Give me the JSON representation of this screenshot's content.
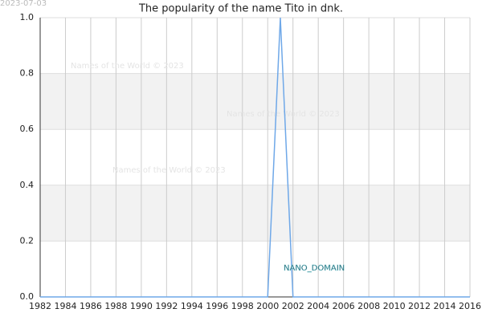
{
  "chart_data": {
    "type": "line",
    "title": "The popularity of the name Tito in dnk.",
    "date_stamp": "2023-07-03",
    "watermarks": [
      "Names of the World © 2023",
      "Names of the World © 2023",
      "Names of the World © 2023"
    ],
    "domain_label": "NANO_DOMAIN",
    "x": [
      1982,
      2000,
      2001,
      2002,
      2016
    ],
    "series": [
      {
        "color": "#6fa8e8",
        "values": [
          0,
          0,
          1,
          0,
          0
        ]
      }
    ],
    "xlim": [
      1982,
      2016
    ],
    "xticks": [
      1982,
      1984,
      1986,
      1988,
      1990,
      1992,
      1994,
      1996,
      1998,
      2000,
      2002,
      2004,
      2006,
      2008,
      2010,
      2012,
      2014,
      2016
    ],
    "ylim": [
      0,
      1
    ],
    "yticks": [
      {
        "value": 0,
        "label": "0.0"
      },
      0.2,
      0.4,
      0.6,
      0.8,
      {
        "value": 1,
        "label": "1.0"
      }
    ],
    "grid": true,
    "banded": true
  }
}
